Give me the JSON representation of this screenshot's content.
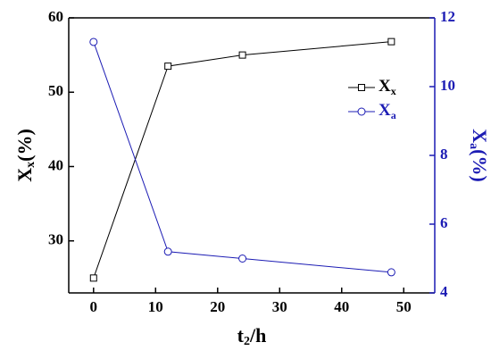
{
  "chart_data": {
    "type": "line",
    "x_label": {
      "main": "t",
      "sub": "2",
      "suffix": "/h"
    },
    "y_label": {
      "main": "X",
      "sub": "x",
      "suffix": "(%)"
    },
    "y2_label": {
      "main": "X",
      "sub": "a",
      "suffix": "(%)"
    },
    "x": [
      0,
      12,
      24,
      48
    ],
    "series": [
      {
        "name": "Xx",
        "color": "#000000",
        "marker": "square",
        "values": [
          25,
          53.5,
          55,
          56.8
        ]
      },
      {
        "name": "Xa",
        "color": "#1c1cb4",
        "marker": "circle",
        "axis": "y2",
        "values": [
          11.3,
          5.2,
          5.0,
          4.6
        ]
      }
    ],
    "xlim": [
      -4,
      55
    ],
    "xticks": [
      0,
      10,
      20,
      30,
      40,
      50
    ],
    "ylim": [
      23,
      60
    ],
    "yticks": [
      30,
      40,
      50,
      60
    ],
    "y2lim": [
      4,
      12
    ],
    "y2ticks": [
      4,
      6,
      8,
      10,
      12
    ],
    "legend": "upper right",
    "grid": false
  }
}
